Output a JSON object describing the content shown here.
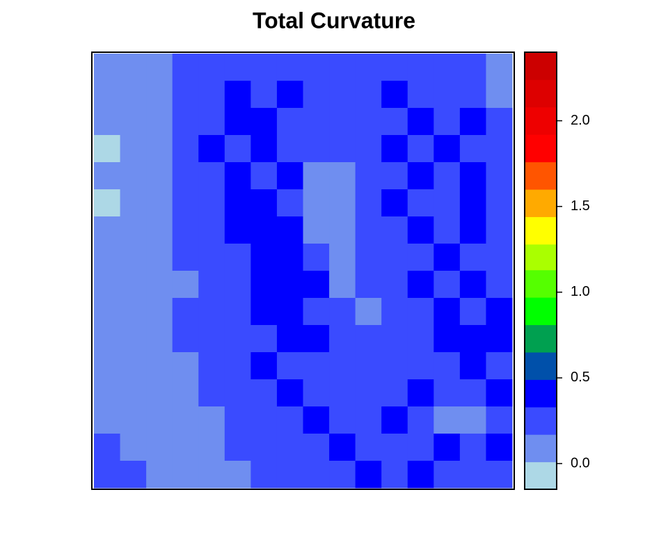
{
  "chart_data": {
    "type": "heatmap",
    "title": "Total Curvature",
    "z": [
      [
        0.1,
        0.1,
        0.12,
        0.2,
        0.25,
        0.3,
        0.22,
        0.3,
        0.25,
        0.2,
        0.3,
        0.25,
        0.3,
        0.22,
        0.25,
        0.12
      ],
      [
        0.1,
        0.08,
        0.12,
        0.22,
        0.3,
        0.35,
        0.3,
        0.38,
        0.25,
        0.22,
        0.3,
        0.35,
        0.3,
        0.25,
        0.3,
        0.15
      ],
      [
        0.05,
        0.1,
        0.15,
        0.25,
        0.3,
        0.4,
        0.35,
        0.3,
        0.22,
        0.2,
        0.25,
        0.3,
        0.38,
        0.3,
        0.35,
        0.2
      ],
      [
        0.0,
        0.08,
        0.12,
        0.2,
        0.35,
        0.3,
        0.4,
        0.3,
        0.2,
        0.18,
        0.3,
        0.35,
        0.3,
        0.4,
        0.3,
        0.22
      ],
      [
        0.05,
        0.1,
        0.15,
        0.25,
        0.3,
        0.35,
        0.3,
        0.35,
        0.15,
        0.15,
        0.25,
        0.3,
        0.35,
        0.3,
        0.38,
        0.25
      ],
      [
        0.0,
        0.1,
        0.12,
        0.22,
        0.28,
        0.38,
        0.42,
        0.3,
        0.12,
        0.12,
        0.3,
        0.35,
        0.3,
        0.25,
        0.35,
        0.22
      ],
      [
        0.05,
        0.08,
        0.15,
        0.2,
        0.25,
        0.35,
        0.45,
        0.35,
        0.15,
        0.15,
        0.28,
        0.3,
        0.35,
        0.3,
        0.4,
        0.25
      ],
      [
        0.1,
        0.1,
        0.12,
        0.18,
        0.22,
        0.3,
        0.45,
        0.4,
        0.25,
        0.12,
        0.25,
        0.3,
        0.3,
        0.35,
        0.3,
        0.3
      ],
      [
        0.05,
        0.1,
        0.15,
        0.15,
        0.22,
        0.28,
        0.35,
        0.45,
        0.35,
        0.15,
        0.2,
        0.3,
        0.35,
        0.3,
        0.35,
        0.3
      ],
      [
        0.1,
        0.12,
        0.12,
        0.2,
        0.25,
        0.3,
        0.35,
        0.4,
        0.3,
        0.2,
        0.15,
        0.25,
        0.3,
        0.35,
        0.3,
        0.35
      ],
      [
        0.08,
        0.05,
        0.12,
        0.2,
        0.22,
        0.3,
        0.3,
        0.35,
        0.35,
        0.25,
        0.2,
        0.25,
        0.3,
        0.35,
        0.38,
        0.35
      ],
      [
        0.1,
        0.08,
        0.1,
        0.15,
        0.25,
        0.3,
        0.35,
        0.3,
        0.3,
        0.3,
        0.25,
        0.3,
        0.3,
        0.3,
        0.35,
        0.3
      ],
      [
        0.12,
        0.1,
        0.05,
        0.12,
        0.2,
        0.25,
        0.3,
        0.35,
        0.3,
        0.3,
        0.3,
        0.3,
        0.35,
        0.25,
        0.3,
        0.35
      ],
      [
        0.15,
        0.12,
        0.1,
        0.08,
        0.12,
        0.25,
        0.3,
        0.3,
        0.35,
        0.3,
        0.3,
        0.35,
        0.3,
        0.15,
        0.15,
        0.3
      ],
      [
        0.2,
        0.15,
        0.12,
        0.1,
        0.08,
        0.2,
        0.3,
        0.3,
        0.3,
        0.35,
        0.3,
        0.3,
        0.3,
        0.35,
        0.3,
        0.35
      ],
      [
        0.25,
        0.2,
        0.15,
        0.12,
        0.1,
        0.15,
        0.25,
        0.3,
        0.3,
        0.3,
        0.35,
        0.3,
        0.35,
        0.3,
        0.3,
        0.3
      ]
    ],
    "breaks": [
      -0.15,
      0.01,
      0.17,
      0.33,
      0.49,
      0.65,
      0.81,
      0.97,
      1.13,
      1.28,
      1.44,
      1.6,
      1.76,
      1.92,
      2.08,
      2.24,
      2.4
    ],
    "colors": [
      "#add8e6",
      "#6f8ef0",
      "#3a4bff",
      "#0000ff",
      "#0050aa",
      "#00a050",
      "#00ff00",
      "#55ff00",
      "#aaff00",
      "#ffff00",
      "#ffaa00",
      "#ff5500",
      "#ff0000",
      "#ee0000",
      "#dd0000",
      "#cc0000"
    ],
    "zlim": [
      -0.15,
      2.4
    ],
    "zticks": [
      {
        "value": 0,
        "label": "0.0"
      },
      {
        "value": 0.5,
        "label": "0.5"
      },
      {
        "value": 1,
        "label": "1.0"
      },
      {
        "value": 1.5,
        "label": "1.5"
      },
      {
        "value": 2,
        "label": "2.0"
      }
    ]
  }
}
